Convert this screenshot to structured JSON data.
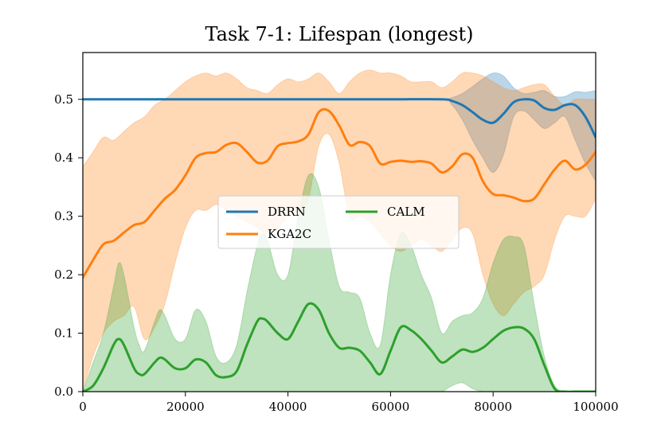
{
  "chart_data": {
    "type": "line",
    "title": "Task 7-1: Lifespan (longest)",
    "xlabel": "",
    "ylabel": "",
    "xlim": [
      0,
      100000
    ],
    "ylim": [
      0,
      0.58
    ],
    "xticks": [
      0,
      20000,
      40000,
      60000,
      80000,
      100000
    ],
    "xtick_labels": [
      "0",
      "20000",
      "40000",
      "60000",
      "80000",
      "100000"
    ],
    "yticks": [
      0.0,
      0.1,
      0.2,
      0.3,
      0.4,
      0.5
    ],
    "ytick_labels": [
      "0.0",
      "0.1",
      "0.2",
      "0.3",
      "0.4",
      "0.5"
    ],
    "grid": false,
    "legend": {
      "position": "center",
      "columns": 2
    },
    "series": [
      {
        "name": "DRRN",
        "color": "#1f77b4",
        "x": [
          0,
          10000,
          20000,
          30000,
          40000,
          50000,
          60000,
          70000,
          72000,
          74000,
          76000,
          78000,
          80000,
          82000,
          84000,
          86000,
          88000,
          90000,
          92000,
          94000,
          96000,
          98000,
          100000
        ],
        "mean": [
          0.5,
          0.5,
          0.5,
          0.5,
          0.5,
          0.5,
          0.5,
          0.5,
          0.497,
          0.49,
          0.478,
          0.465,
          0.46,
          0.475,
          0.495,
          0.5,
          0.498,
          0.485,
          0.482,
          0.49,
          0.49,
          0.47,
          0.435
        ],
        "lower": [
          0.5,
          0.5,
          0.5,
          0.5,
          0.5,
          0.5,
          0.5,
          0.5,
          0.49,
          0.465,
          0.43,
          0.4,
          0.375,
          0.405,
          0.47,
          0.48,
          0.465,
          0.45,
          0.46,
          0.47,
          0.43,
          0.39,
          0.36
        ],
        "upper": [
          0.5,
          0.5,
          0.5,
          0.5,
          0.5,
          0.5,
          0.5,
          0.5,
          0.503,
          0.51,
          0.522,
          0.535,
          0.545,
          0.54,
          0.52,
          0.51,
          0.512,
          0.515,
          0.505,
          0.505,
          0.513,
          0.512,
          0.515
        ]
      },
      {
        "name": "KGA2C",
        "color": "#ff7f0e",
        "x": [
          0,
          2000,
          4000,
          6000,
          8000,
          10000,
          12000,
          14000,
          16000,
          18000,
          20000,
          22000,
          24000,
          26000,
          28000,
          30000,
          32000,
          34000,
          36000,
          38000,
          40000,
          42000,
          44000,
          46000,
          48000,
          50000,
          52000,
          54000,
          56000,
          58000,
          60000,
          62000,
          64000,
          66000,
          68000,
          70000,
          72000,
          74000,
          76000,
          78000,
          80000,
          82000,
          84000,
          86000,
          88000,
          90000,
          92000,
          94000,
          96000,
          98000,
          100000
        ],
        "mean": [
          0.195,
          0.225,
          0.252,
          0.258,
          0.272,
          0.285,
          0.29,
          0.31,
          0.33,
          0.345,
          0.37,
          0.4,
          0.408,
          0.41,
          0.422,
          0.425,
          0.41,
          0.392,
          0.395,
          0.42,
          0.425,
          0.428,
          0.44,
          0.478,
          0.48,
          0.455,
          0.422,
          0.427,
          0.42,
          0.39,
          0.393,
          0.395,
          0.393,
          0.394,
          0.39,
          0.375,
          0.385,
          0.406,
          0.4,
          0.36,
          0.338,
          0.336,
          0.332,
          0.326,
          0.33,
          0.355,
          0.38,
          0.395,
          0.38,
          0.388,
          0.41
        ],
        "lower": [
          0.0,
          0.06,
          0.1,
          0.12,
          0.13,
          0.145,
          0.09,
          0.11,
          0.15,
          0.22,
          0.28,
          0.31,
          0.31,
          0.32,
          0.31,
          0.3,
          0.29,
          0.28,
          0.27,
          0.28,
          0.3,
          0.31,
          0.33,
          0.42,
          0.44,
          0.39,
          0.3,
          0.3,
          0.29,
          0.27,
          0.25,
          0.24,
          0.25,
          0.26,
          0.25,
          0.24,
          0.26,
          0.28,
          0.27,
          0.2,
          0.15,
          0.13,
          0.15,
          0.17,
          0.18,
          0.2,
          0.26,
          0.3,
          0.3,
          0.3,
          0.33
        ],
        "upper": [
          0.385,
          0.41,
          0.435,
          0.43,
          0.445,
          0.46,
          0.47,
          0.49,
          0.5,
          0.515,
          0.53,
          0.54,
          0.545,
          0.54,
          0.545,
          0.535,
          0.52,
          0.515,
          0.51,
          0.525,
          0.535,
          0.53,
          0.535,
          0.545,
          0.53,
          0.51,
          0.53,
          0.545,
          0.55,
          0.545,
          0.545,
          0.54,
          0.53,
          0.53,
          0.53,
          0.52,
          0.53,
          0.545,
          0.545,
          0.54,
          0.53,
          0.52,
          0.515,
          0.52,
          0.525,
          0.525,
          0.505,
          0.49,
          0.5,
          0.5,
          0.5
        ]
      },
      {
        "name": "CALM",
        "color": "#2ca02c",
        "x": [
          0,
          2000,
          4000,
          6000,
          7000,
          8000,
          10000,
          11000,
          12000,
          14000,
          15000,
          16000,
          18000,
          20000,
          22000,
          24000,
          26000,
          28000,
          30000,
          32000,
          34000,
          35000,
          36000,
          38000,
          40000,
          42000,
          44000,
          46000,
          48000,
          50000,
          52000,
          54000,
          56000,
          58000,
          60000,
          62000,
          64000,
          66000,
          68000,
          70000,
          72000,
          74000,
          76000,
          78000,
          80000,
          82000,
          84000,
          86000,
          88000,
          90000,
          92000,
          94000,
          96000,
          98000,
          100000
        ],
        "mean": [
          0.0,
          0.01,
          0.04,
          0.08,
          0.09,
          0.08,
          0.04,
          0.03,
          0.03,
          0.05,
          0.058,
          0.055,
          0.04,
          0.04,
          0.055,
          0.05,
          0.028,
          0.025,
          0.035,
          0.08,
          0.12,
          0.125,
          0.12,
          0.1,
          0.09,
          0.12,
          0.15,
          0.14,
          0.1,
          0.075,
          0.075,
          0.07,
          0.05,
          0.03,
          0.07,
          0.11,
          0.105,
          0.09,
          0.07,
          0.05,
          0.06,
          0.072,
          0.068,
          0.075,
          0.09,
          0.104,
          0.11,
          0.108,
          0.09,
          0.045,
          0.005,
          0.0,
          0.0,
          0.0,
          0.0
        ],
        "lower": [
          0.0,
          0.0,
          0.0,
          0.0,
          0.0,
          0.0,
          0.0,
          0.0,
          0.0,
          0.0,
          0.0,
          0.0,
          0.0,
          0.0,
          0.0,
          0.0,
          0.0,
          0.0,
          0.0,
          0.0,
          0.0,
          0.0,
          0.0,
          0.0,
          0.0,
          0.0,
          0.0,
          0.0,
          0.0,
          0.0,
          0.0,
          0.0,
          0.0,
          0.0,
          0.0,
          0.0,
          0.0,
          0.0,
          0.0,
          0.0,
          0.01,
          0.015,
          0.005,
          0.0,
          0.0,
          0.0,
          0.0,
          0.0,
          0.0,
          0.0,
          0.0,
          0.0,
          0.0,
          0.0,
          0.0
        ],
        "upper": [
          0.0,
          0.05,
          0.1,
          0.18,
          0.22,
          0.2,
          0.11,
          0.08,
          0.07,
          0.12,
          0.14,
          0.13,
          0.09,
          0.09,
          0.14,
          0.12,
          0.06,
          0.05,
          0.08,
          0.17,
          0.25,
          0.27,
          0.26,
          0.2,
          0.2,
          0.3,
          0.37,
          0.35,
          0.26,
          0.18,
          0.17,
          0.16,
          0.1,
          0.08,
          0.2,
          0.27,
          0.25,
          0.2,
          0.16,
          0.1,
          0.12,
          0.13,
          0.135,
          0.16,
          0.22,
          0.26,
          0.265,
          0.25,
          0.15,
          0.06,
          0.01,
          0.0,
          0.0,
          0.0,
          0.0
        ]
      }
    ]
  }
}
